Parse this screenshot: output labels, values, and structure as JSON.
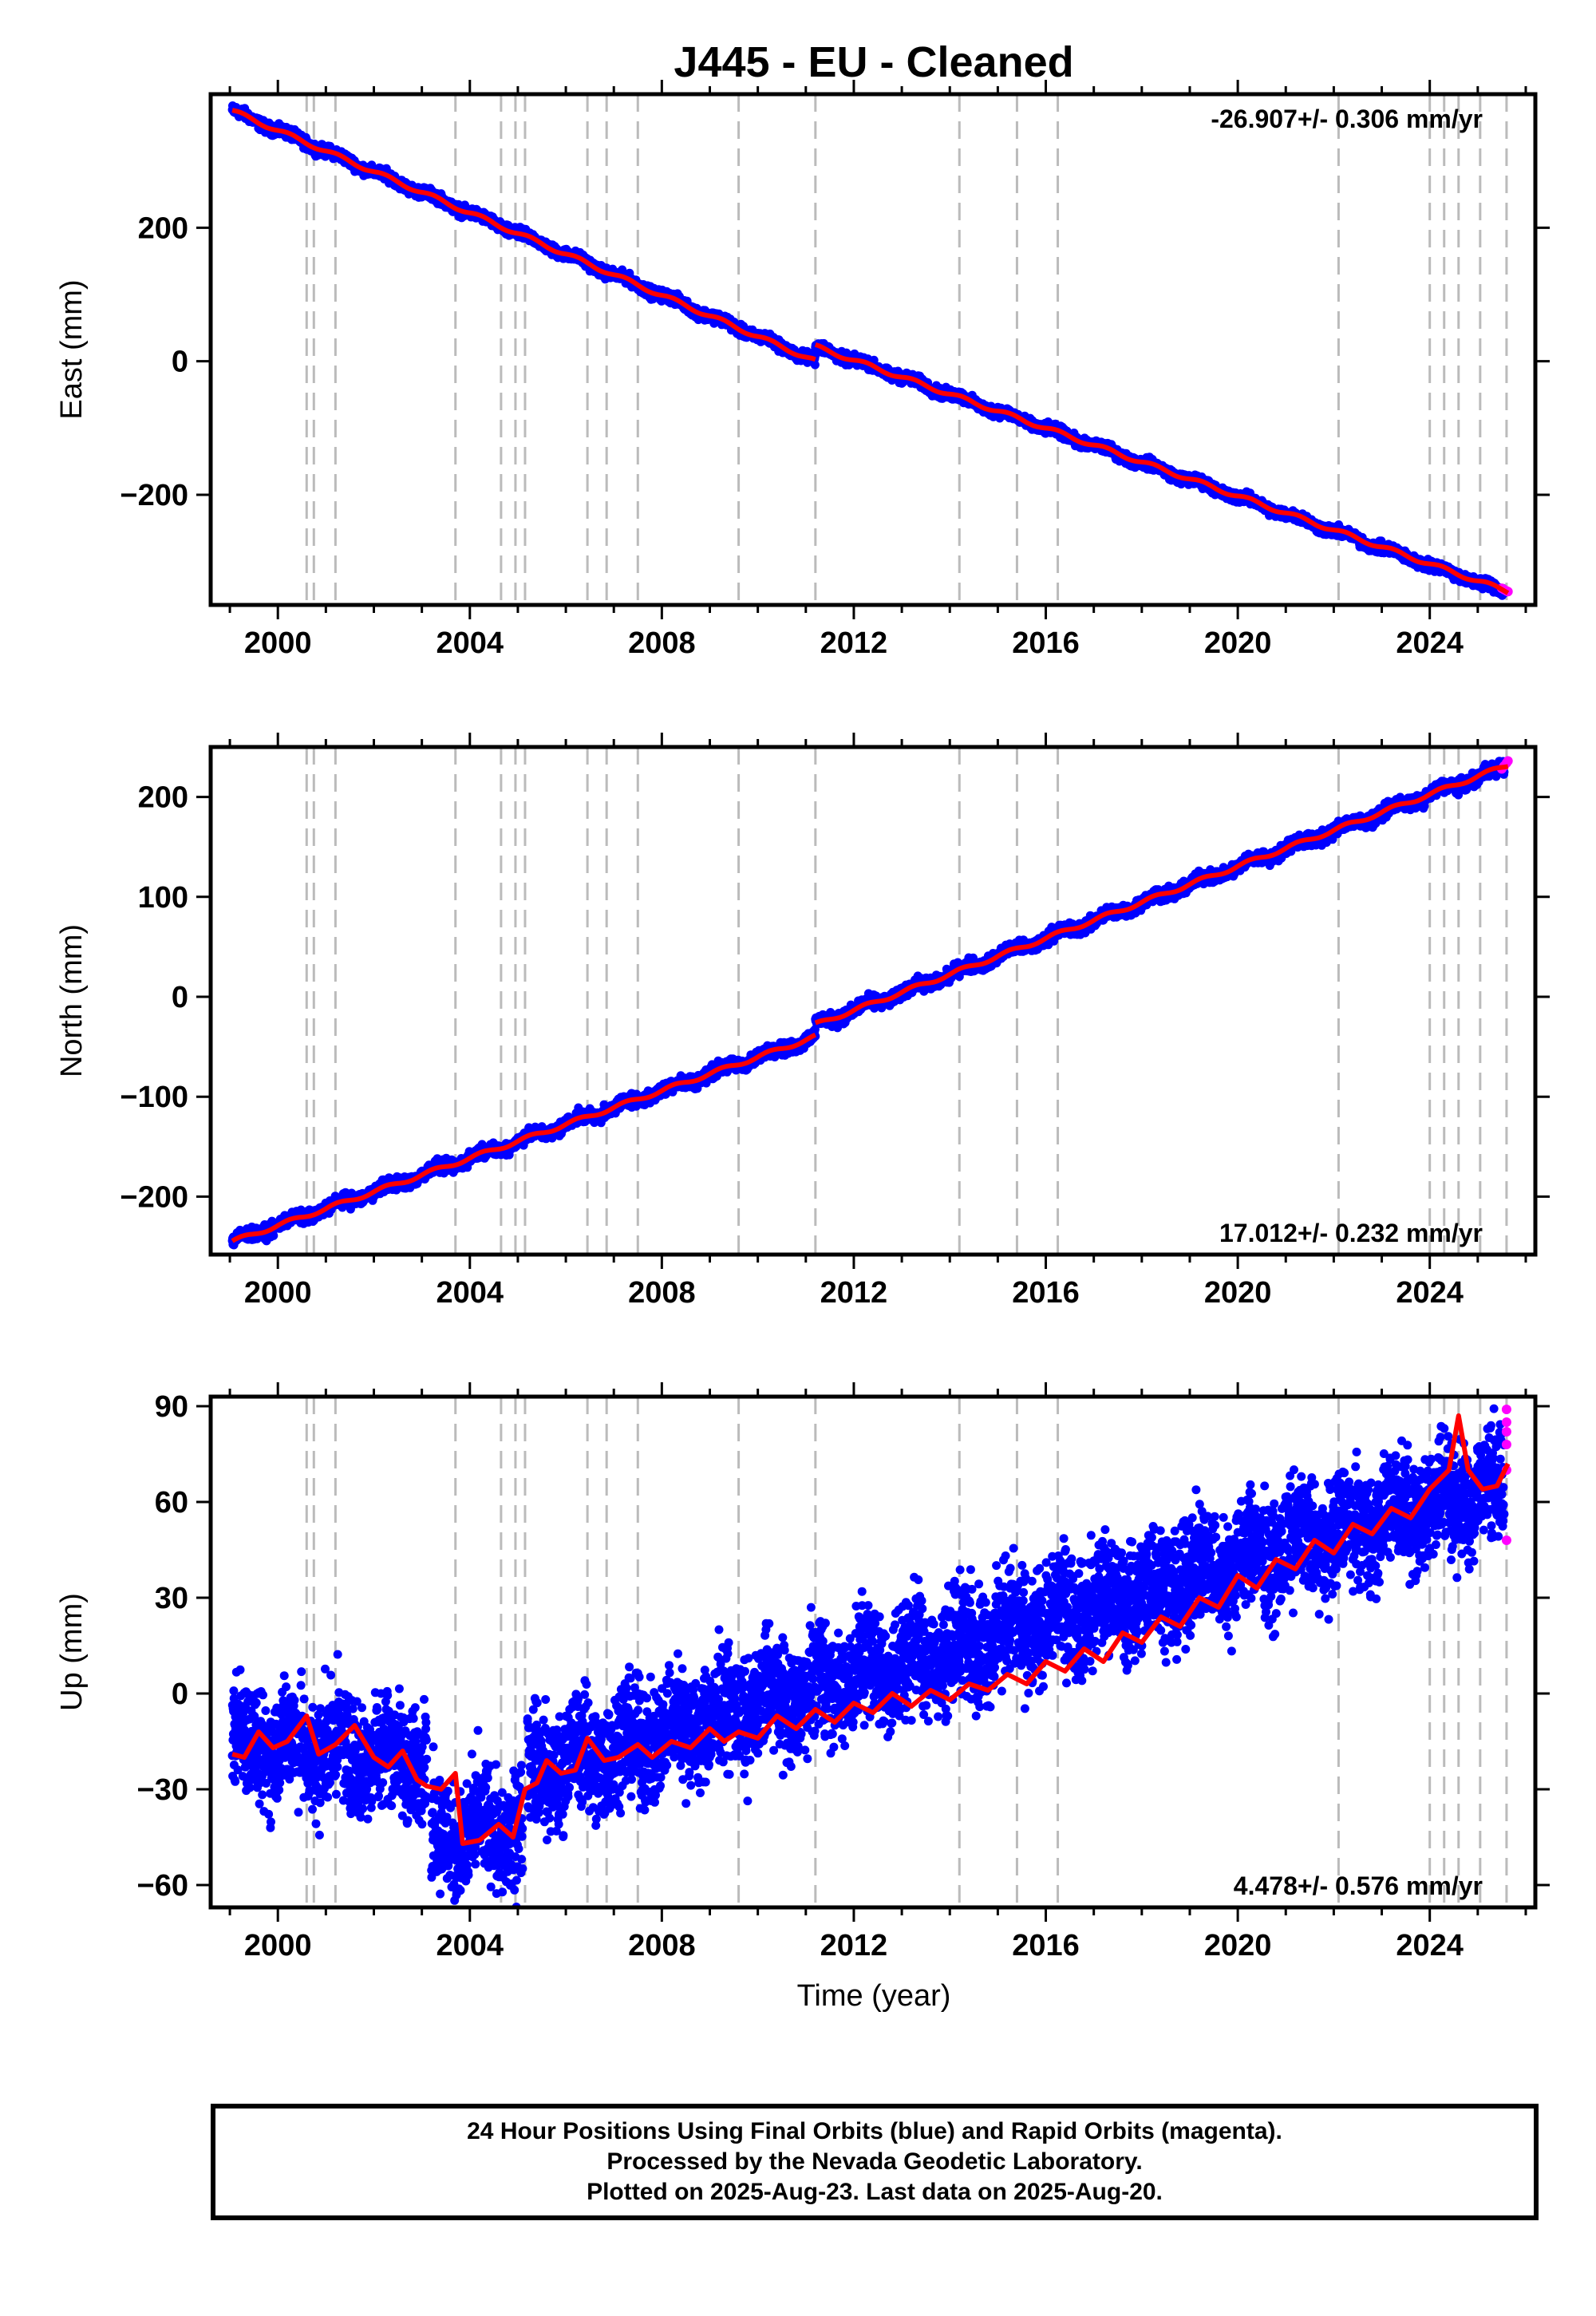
{
  "title": "J445  - EU - Cleaned",
  "xlabel": "Time (year)",
  "footer": {
    "line1": "24 Hour Positions Using Final Orbits (blue) and Rapid Orbits (magenta).",
    "line2": "Processed by the Nevada Geodetic Laboratory.",
    "line3": "Plotted on 2025-Aug-23. Last data on 2025-Aug-20."
  },
  "colors": {
    "final_orbits": "#0000ff",
    "rapid_orbits": "#ff00ff",
    "model_fit": "#ff0000",
    "event_lines": "#bbbbbb",
    "axes": "#000000"
  },
  "chart_data": [
    {
      "type": "scatter",
      "panel": "east",
      "ylabel": "East (mm)",
      "rate_label": "-26.907+/- 0.306 mm/yr",
      "xlim": [
        1998.6,
        2026.2
      ],
      "ylim": [
        -365,
        400
      ],
      "xticks": [
        2000,
        2004,
        2008,
        2012,
        2016,
        2020,
        2024
      ],
      "yticks": [
        -200,
        0,
        200
      ],
      "event_lines": [
        2000.6,
        2000.75,
        2001.2,
        2003.7,
        2004.65,
        2004.95,
        2005.15,
        2006.45,
        2006.85,
        2007.5,
        2009.6,
        2011.2,
        2014.2,
        2015.4,
        2016.25,
        2022.1,
        2024.0,
        2024.3,
        2024.6,
        2025.05,
        2025.6
      ],
      "series": [
        {
          "name": "Final Orbits",
          "style": "blue-dots",
          "segments": [
            {
              "x": [
                1999.05,
                2011.2
              ],
              "y": [
                375,
                0
              ]
            },
            {
              "x": [
                2011.2,
                2025.55
              ],
              "y": [
                22,
                -345
              ]
            }
          ],
          "scatter": 5
        },
        {
          "name": "Rapid Orbits",
          "style": "magenta-dots",
          "x": [
            2025.5,
            2025.55,
            2025.6,
            2025.63
          ],
          "y": [
            -340,
            -342,
            -344,
            -345
          ]
        },
        {
          "name": "Model",
          "style": "red-line",
          "segments": [
            {
              "x": [
                1999.05,
                2011.2
              ],
              "y": [
                375,
                0
              ]
            },
            {
              "x": [
                2011.2,
                2025.63
              ],
              "y": [
                22,
                -345
              ]
            }
          ],
          "seasonal": 3
        }
      ]
    },
    {
      "type": "scatter",
      "panel": "north",
      "ylabel": "North (mm)",
      "rate_label": "17.012+/- 0.232 mm/yr",
      "xlim": [
        1998.6,
        2026.2
      ],
      "ylim": [
        -258,
        250
      ],
      "xticks": [
        2000,
        2004,
        2008,
        2012,
        2016,
        2020,
        2024
      ],
      "yticks": [
        -200,
        -100,
        0,
        100,
        200
      ],
      "event_lines": [
        2000.6,
        2000.75,
        2001.2,
        2003.7,
        2004.65,
        2004.95,
        2005.15,
        2006.45,
        2006.85,
        2007.5,
        2009.6,
        2011.2,
        2014.2,
        2015.4,
        2016.25,
        2022.1,
        2024.0,
        2024.3,
        2024.6,
        2025.05,
        2025.6
      ],
      "series": [
        {
          "name": "Final Orbits",
          "style": "blue-dots",
          "segments": [
            {
              "x": [
                1999.05,
                2011.2
              ],
              "y": [
                -245,
                -40
              ]
            },
            {
              "x": [
                2011.2,
                2025.55
              ],
              "y": [
                -28,
                230
              ]
            }
          ],
          "scatter": 4
        },
        {
          "name": "Rapid Orbits",
          "style": "magenta-dots",
          "x": [
            2025.5,
            2025.55,
            2025.6,
            2025.63
          ],
          "y": [
            228,
            231,
            234,
            236
          ]
        },
        {
          "name": "Model",
          "style": "red-line",
          "segments": [
            {
              "x": [
                1999.05,
                2011.2
              ],
              "y": [
                -245,
                -40
              ]
            },
            {
              "x": [
                2011.2,
                2025.63
              ],
              "y": [
                -28,
                232
              ]
            }
          ],
          "seasonal": 2
        }
      ]
    },
    {
      "type": "scatter",
      "panel": "up",
      "ylabel": "Up (mm)",
      "rate_label": "4.478+/- 0.576 mm/yr",
      "xlim": [
        1998.6,
        2026.2
      ],
      "ylim": [
        -67,
        93
      ],
      "xticks": [
        2000,
        2004,
        2008,
        2012,
        2016,
        2020,
        2024
      ],
      "yticks": [
        -60,
        -30,
        0,
        30,
        60,
        90
      ],
      "event_lines": [
        2000.6,
        2000.75,
        2001.2,
        2003.7,
        2004.65,
        2004.95,
        2005.15,
        2006.45,
        2006.85,
        2007.5,
        2009.6,
        2011.2,
        2014.2,
        2015.4,
        2016.25,
        2022.1,
        2024.0,
        2024.3,
        2024.6,
        2025.05,
        2025.6
      ],
      "series": [
        {
          "name": "Final Orbits",
          "style": "blue-dots",
          "segments": [
            {
              "x": [
                1999.05,
                2003.1
              ],
              "y": [
                -15,
                -20
              ]
            },
            {
              "x": [
                2003.2,
                2005.1
              ],
              "y": [
                -45,
                -42
              ]
            },
            {
              "x": [
                2005.2,
                2025.55
              ],
              "y": [
                -25,
                66
              ]
            }
          ],
          "scatter": 11
        },
        {
          "name": "Rapid Orbits",
          "style": "magenta-dots",
          "x": [
            2025.6,
            2025.6,
            2025.6,
            2025.6,
            2025.6,
            2025.6
          ],
          "y": [
            89,
            85,
            82,
            78,
            70,
            48
          ]
        },
        {
          "name": "Model",
          "style": "red-line",
          "points": [
            [
              1999.05,
              -19
            ],
            [
              1999.3,
              -20
            ],
            [
              1999.6,
              -12
            ],
            [
              1999.9,
              -17
            ],
            [
              2000.2,
              -15
            ],
            [
              2000.6,
              -7
            ],
            [
              2000.85,
              -19
            ],
            [
              2001.2,
              -16
            ],
            [
              2001.6,
              -10
            ],
            [
              2002.0,
              -20
            ],
            [
              2002.3,
              -23
            ],
            [
              2002.6,
              -18
            ],
            [
              2002.9,
              -27
            ],
            [
              2003.1,
              -29
            ],
            [
              2003.4,
              -30
            ],
            [
              2003.7,
              -25
            ],
            [
              2003.85,
              -47
            ],
            [
              2004.2,
              -46
            ],
            [
              2004.6,
              -41
            ],
            [
              2004.9,
              -45
            ],
            [
              2005.15,
              -30
            ],
            [
              2005.4,
              -28
            ],
            [
              2005.6,
              -21
            ],
            [
              2005.9,
              -25
            ],
            [
              2006.2,
              -24
            ],
            [
              2006.45,
              -14
            ],
            [
              2006.8,
              -21
            ],
            [
              2007.1,
              -20
            ],
            [
              2007.5,
              -16
            ],
            [
              2007.8,
              -20
            ],
            [
              2008.2,
              -15
            ],
            [
              2008.6,
              -17
            ],
            [
              2009.0,
              -11
            ],
            [
              2009.3,
              -15
            ],
            [
              2009.6,
              -12
            ],
            [
              2010.0,
              -14
            ],
            [
              2010.4,
              -7
            ],
            [
              2010.8,
              -11
            ],
            [
              2011.2,
              -5
            ],
            [
              2011.6,
              -9
            ],
            [
              2012.0,
              -3
            ],
            [
              2012.4,
              -6
            ],
            [
              2012.8,
              0
            ],
            [
              2013.2,
              -4
            ],
            [
              2013.6,
              1
            ],
            [
              2014.0,
              -2
            ],
            [
              2014.4,
              3
            ],
            [
              2014.8,
              1
            ],
            [
              2015.2,
              6
            ],
            [
              2015.6,
              3
            ],
            [
              2016.0,
              10
            ],
            [
              2016.4,
              7
            ],
            [
              2016.8,
              14
            ],
            [
              2017.2,
              10
            ],
            [
              2017.6,
              19
            ],
            [
              2018.0,
              16
            ],
            [
              2018.4,
              24
            ],
            [
              2018.8,
              21
            ],
            [
              2019.2,
              30
            ],
            [
              2019.6,
              27
            ],
            [
              2020.0,
              37
            ],
            [
              2020.4,
              33
            ],
            [
              2020.8,
              42
            ],
            [
              2021.2,
              39
            ],
            [
              2021.6,
              48
            ],
            [
              2022.0,
              44
            ],
            [
              2022.4,
              53
            ],
            [
              2022.8,
              50
            ],
            [
              2023.2,
              58
            ],
            [
              2023.6,
              55
            ],
            [
              2024.0,
              64
            ],
            [
              2024.4,
              70
            ],
            [
              2024.6,
              87
            ],
            [
              2024.8,
              70
            ],
            [
              2025.1,
              64
            ],
            [
              2025.4,
              65
            ],
            [
              2025.63,
              72
            ]
          ]
        }
      ]
    }
  ]
}
